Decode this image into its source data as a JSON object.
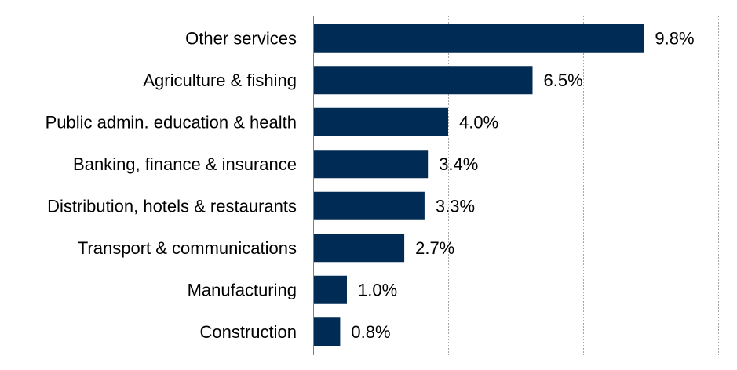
{
  "chart_data": {
    "type": "bar",
    "orientation": "horizontal",
    "categories": [
      "Other services",
      "Agriculture & fishing",
      "Public admin. education & health",
      "Banking, finance & insurance",
      "Distribution, hotels & restaurants",
      "Transport & communications",
      "Manufacturing",
      "Construction"
    ],
    "values": [
      9.8,
      6.5,
      4.0,
      3.4,
      3.3,
      2.7,
      1.0,
      0.8
    ],
    "data_labels": [
      "9.8%",
      "6.5%",
      "4.0%",
      "3.4%",
      "3.3%",
      "2.7%",
      "1.0%",
      "0.8%"
    ],
    "xlim": [
      0,
      12
    ],
    "x_gridlines": [
      2,
      4,
      6,
      8,
      10,
      12
    ],
    "grid": true,
    "title": "",
    "xlabel": "",
    "ylabel": "",
    "bar_color": "#002b54"
  }
}
